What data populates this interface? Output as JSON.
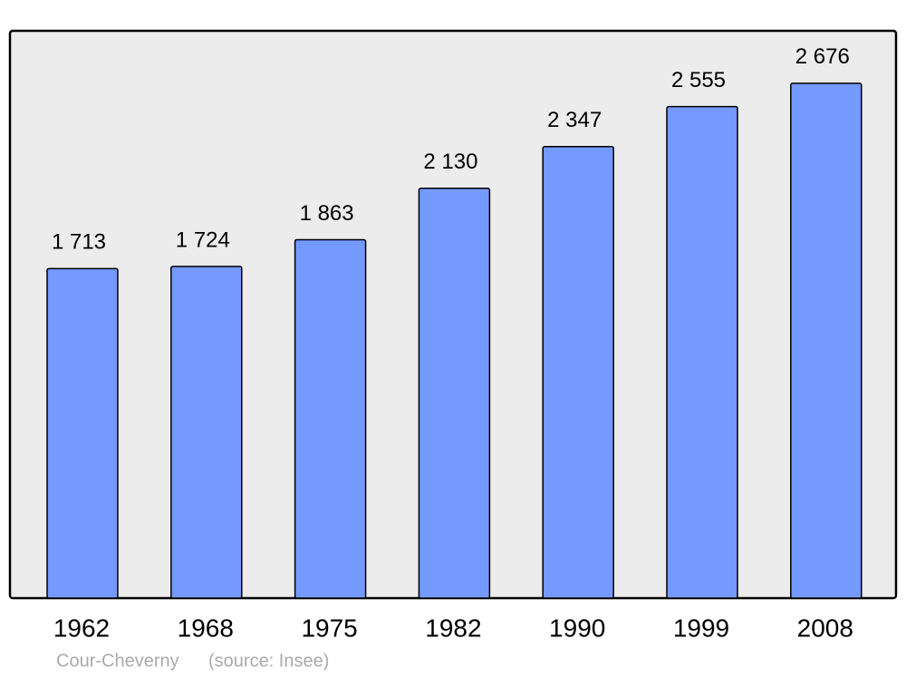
{
  "chart_data": {
    "type": "bar",
    "title": "Cour-Cheverny",
    "source": "(source: Insee)",
    "categories": [
      "1962",
      "1968",
      "1975",
      "1982",
      "1990",
      "1999",
      "2008"
    ],
    "values": [
      1713,
      1724,
      1863,
      2130,
      2347,
      2555,
      2676
    ],
    "value_labels": [
      "1 713",
      "1 724",
      "1 863",
      "2 130",
      "2 347",
      "2 555",
      "2 676"
    ],
    "color": "#7499ff",
    "ylim": [
      0,
      2944
    ]
  }
}
